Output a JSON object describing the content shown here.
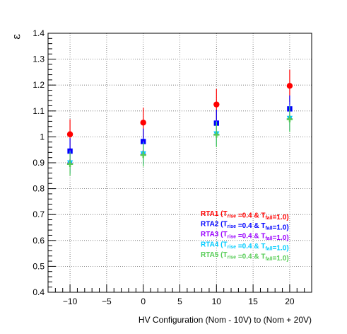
{
  "chart_data": {
    "type": "scatter",
    "xlabel": "HV Configuration (Nom - 10V) to (Nom + 20V)",
    "ylabel": "ε",
    "xlim": [
      -13,
      23
    ],
    "ylim": [
      0.4,
      1.4
    ],
    "xticks": [
      -10,
      -5,
      0,
      5,
      10,
      15,
      20
    ],
    "yticks": [
      0.4,
      0.5,
      0.6,
      0.7,
      0.8,
      0.9,
      1,
      1.1,
      1.2,
      1.3,
      1.4
    ],
    "grid": true,
    "legend_position": "bottom-right",
    "series": [
      {
        "name": "RTA1",
        "legend": {
          "prefix": "RTA1 (T",
          "sub1": "rise",
          "mid": " =0.4 & T",
          "sub2": "fall",
          "suffix": "=1.0)"
        },
        "color": "#ff0000",
        "marker": "circle",
        "x": [
          -10,
          0,
          10,
          20
        ],
        "y": [
          1.01,
          1.055,
          1.125,
          1.197
        ],
        "err": [
          0.058,
          0.058,
          0.06,
          0.062
        ]
      },
      {
        "name": "RTA2",
        "legend": {
          "prefix": "RTA2 (T",
          "sub1": "rise",
          "mid": " =0.4 & T",
          "sub2": "fall",
          "suffix": "=1.0)"
        },
        "color": "#0000ff",
        "marker": "square",
        "x": [
          -10,
          0,
          10,
          20
        ],
        "y": [
          0.945,
          0.982,
          1.053,
          1.108
        ],
        "err": [
          0.05,
          0.05,
          0.052,
          0.052
        ]
      },
      {
        "name": "RTA3",
        "legend": {
          "prefix": "RTA3 (T",
          "sub1": "rise",
          "mid": " =0.4 & T",
          "sub2": "fall",
          "suffix": "=1.0)"
        },
        "color": "#9900ff",
        "marker": "triangle-up",
        "x": [
          -10,
          0,
          10,
          20
        ],
        "y": [
          0.905,
          0.94,
          1.015,
          1.075
        ],
        "err": [
          0.045,
          0.045,
          0.048,
          0.05
        ]
      },
      {
        "name": "RTA4",
        "legend": {
          "prefix": "RTA4 (T",
          "sub1": "rise",
          "mid": " =0.4 & T",
          "sub2": "fall",
          "suffix": "=1.0)"
        },
        "color": "#00ccff",
        "marker": "triangle-down",
        "x": [
          -10,
          0,
          10,
          20
        ],
        "y": [
          0.9,
          0.935,
          1.012,
          1.072
        ],
        "err": [
          0.045,
          0.045,
          0.048,
          0.05
        ]
      },
      {
        "name": "RTA5",
        "legend": {
          "prefix": "RTA5 (T",
          "sub1": "rise",
          "mid": " =0.4 & T",
          "sub2": "fall",
          "suffix": "=1.0)"
        },
        "color": "#55cc55",
        "marker": "cross",
        "x": [
          -10,
          0,
          10,
          20
        ],
        "y": [
          0.895,
          0.93,
          1.008,
          1.068
        ],
        "err": [
          0.045,
          0.045,
          0.048,
          0.05
        ]
      }
    ]
  }
}
